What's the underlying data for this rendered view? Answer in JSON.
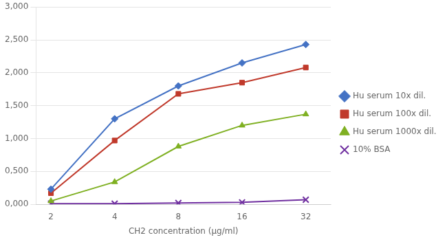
{
  "chart_data": {
    "type": "line",
    "x": [
      2,
      4,
      8,
      16,
      32
    ],
    "series": [
      {
        "name": "Hu serum 10x dil.",
        "color": "#4472C4",
        "marker": "diamond",
        "values": [
          230,
          1300,
          1800,
          2150,
          2430
        ]
      },
      {
        "name": "Hu serum 100x dil.",
        "color": "#C0392B",
        "marker": "square",
        "values": [
          170,
          970,
          1680,
          1850,
          2080
        ]
      },
      {
        "name": "Hu serum 1000x dil.",
        "color": "#7FB022",
        "marker": "triangle",
        "values": [
          50,
          340,
          880,
          1200,
          1370
        ]
      },
      {
        "name": "10% BSA",
        "color": "#7030A0",
        "marker": "x",
        "values": [
          10,
          10,
          20,
          30,
          70
        ]
      }
    ],
    "xlabel": "CH2 concentration (μg/ml)",
    "log": "x",
    "xlim": [
      1.7,
      42
    ],
    "xticks": [
      2,
      4,
      8,
      16,
      32
    ],
    "ylim": [
      0,
      3000
    ],
    "yticks": [
      {
        "value": 0,
        "label": "0,000"
      },
      {
        "value": 500,
        "label": "0,500"
      },
      {
        "value": 1000,
        "label": "1,000"
      },
      {
        "value": 1500,
        "label": "1,500"
      },
      {
        "value": 2000,
        "label": "2,000"
      },
      {
        "value": 2500,
        "label": "2,500"
      },
      {
        "value": 3000,
        "label": "3,000"
      }
    ],
    "grid": "y",
    "legend": "right"
  }
}
